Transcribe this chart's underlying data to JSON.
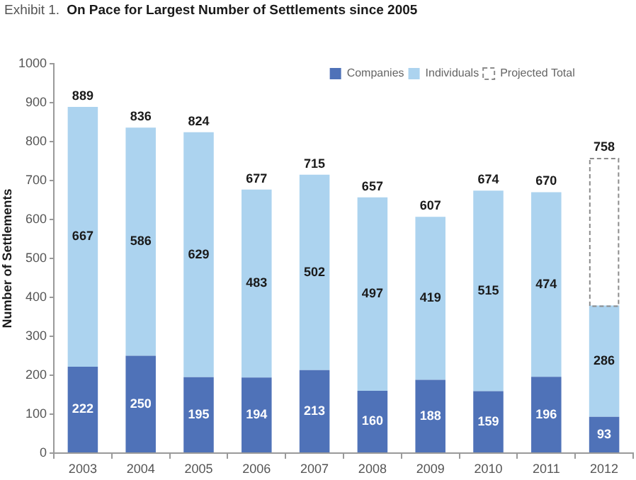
{
  "chart_data": {
    "type": "bar",
    "title": "On Pace for Largest Number of Settlements since 2005",
    "annotations": [
      "Exhibit 1."
    ],
    "ylabel": "Number of Settlements",
    "categories": [
      "2003",
      "2004",
      "2005",
      "2006",
      "2007",
      "2008",
      "2009",
      "2010",
      "2011",
      "2012"
    ],
    "series": [
      {
        "name": "Companies",
        "color": "#4f72b8",
        "values": [
          222,
          250,
          195,
          194,
          213,
          160,
          188,
          159,
          196,
          93
        ],
        "value_labels": [
          "222",
          "250",
          "195",
          "194",
          "213",
          "160",
          "188",
          "159",
          "196",
          "93"
        ]
      },
      {
        "name": "Individuals",
        "color": "#acd3ef",
        "values": [
          667,
          586,
          629,
          483,
          502,
          497,
          419,
          515,
          474,
          286
        ],
        "value_labels": [
          "667",
          "586",
          "629",
          "483",
          "502",
          "497",
          "419",
          "515",
          "474",
          "286"
        ]
      },
      {
        "name": "Projected Total",
        "color": "#8c8c8c",
        "values": [
          null,
          null,
          null,
          null,
          null,
          null,
          null,
          null,
          null,
          379
        ],
        "line_style": "dashed"
      }
    ],
    "stacked": true,
    "totals": [
      "889",
      "836",
      "824",
      "677",
      "715",
      "657",
      "607",
      "674",
      "670",
      "758"
    ],
    "ylim": [
      0,
      1000
    ],
    "yticks": [
      0,
      100,
      200,
      300,
      400,
      500,
      600,
      700,
      800,
      900,
      1000
    ],
    "legend": "top right"
  }
}
